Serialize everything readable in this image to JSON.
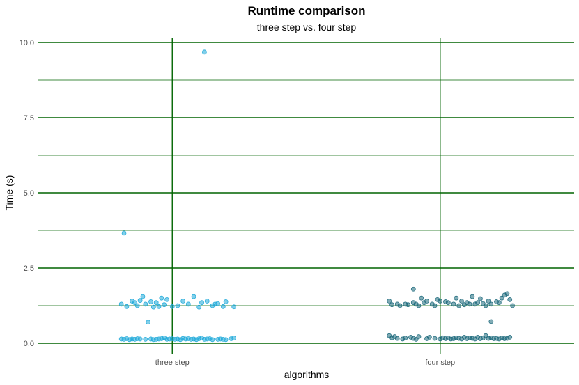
{
  "chart_data": {
    "type": "scatter",
    "title": "Runtime comparison",
    "subtitle": "three step vs. four step",
    "xlabel": "algorithms",
    "ylabel": "Time (s)",
    "categories": [
      "three step",
      "four step"
    ],
    "ylim": [
      -0.3,
      10.2
    ],
    "yticks": [
      {
        "value": 0,
        "label": "0.0"
      },
      {
        "value": 2.5,
        "label": "2.5"
      },
      {
        "value": 5,
        "label": "5.0"
      },
      {
        "value": 7.5,
        "label": "7.5"
      },
      {
        "value": 10,
        "label": "10.0"
      }
    ],
    "grid": true,
    "grid_color": "#006400",
    "legend": "none",
    "series": [
      {
        "category": "three step",
        "color": "#1aa7d8",
        "points": [
          [
            -0.18,
            3.66
          ],
          [
            0.12,
            9.68
          ],
          [
            -0.09,
            0.7
          ],
          [
            -0.19,
            1.3
          ],
          [
            -0.17,
            1.22
          ],
          [
            -0.15,
            1.4
          ],
          [
            -0.14,
            1.35
          ],
          [
            -0.13,
            1.25
          ],
          [
            -0.12,
            1.42
          ],
          [
            -0.11,
            1.55
          ],
          [
            -0.1,
            1.3
          ],
          [
            -0.08,
            1.38
          ],
          [
            -0.07,
            1.2
          ],
          [
            -0.06,
            1.35
          ],
          [
            -0.05,
            1.22
          ],
          [
            -0.04,
            1.5
          ],
          [
            -0.03,
            1.28
          ],
          [
            -0.02,
            1.45
          ],
          [
            0.0,
            1.22
          ],
          [
            0.02,
            1.25
          ],
          [
            0.04,
            1.4
          ],
          [
            0.06,
            1.3
          ],
          [
            0.08,
            1.55
          ],
          [
            0.1,
            1.2
          ],
          [
            0.11,
            1.35
          ],
          [
            0.13,
            1.4
          ],
          [
            0.15,
            1.25
          ],
          [
            0.16,
            1.3
          ],
          [
            0.17,
            1.32
          ],
          [
            0.19,
            1.22
          ],
          [
            0.2,
            1.38
          ],
          [
            0.23,
            1.21
          ],
          [
            -0.19,
            0.14
          ],
          [
            -0.18,
            0.13
          ],
          [
            -0.17,
            0.15
          ],
          [
            -0.16,
            0.12
          ],
          [
            -0.15,
            0.14
          ],
          [
            -0.14,
            0.13
          ],
          [
            -0.13,
            0.15
          ],
          [
            -0.12,
            0.14
          ],
          [
            -0.1,
            0.13
          ],
          [
            -0.08,
            0.14
          ],
          [
            -0.07,
            0.12
          ],
          [
            -0.06,
            0.13
          ],
          [
            -0.05,
            0.14
          ],
          [
            -0.04,
            0.15
          ],
          [
            -0.03,
            0.18
          ],
          [
            -0.02,
            0.13
          ],
          [
            -0.01,
            0.14
          ],
          [
            0.0,
            0.15
          ],
          [
            0.01,
            0.13
          ],
          [
            0.02,
            0.14
          ],
          [
            0.03,
            0.12
          ],
          [
            0.04,
            0.16
          ],
          [
            0.05,
            0.14
          ],
          [
            0.06,
            0.15
          ],
          [
            0.07,
            0.13
          ],
          [
            0.08,
            0.14
          ],
          [
            0.09,
            0.12
          ],
          [
            0.1,
            0.15
          ],
          [
            0.11,
            0.17
          ],
          [
            0.12,
            0.13
          ],
          [
            0.13,
            0.14
          ],
          [
            0.14,
            0.15
          ],
          [
            0.15,
            0.12
          ],
          [
            0.17,
            0.13
          ],
          [
            0.18,
            0.14
          ],
          [
            0.19,
            0.13
          ],
          [
            0.2,
            0.12
          ],
          [
            0.22,
            0.15
          ],
          [
            0.23,
            0.17
          ]
        ]
      },
      {
        "category": "four step",
        "color": "#19677a",
        "points": [
          [
            0.19,
            0.72
          ],
          [
            -0.19,
            1.4
          ],
          [
            -0.18,
            1.28
          ],
          [
            -0.16,
            1.3
          ],
          [
            -0.15,
            1.25
          ],
          [
            -0.13,
            1.3
          ],
          [
            -0.12,
            1.28
          ],
          [
            -0.1,
            1.35
          ],
          [
            -0.09,
            1.3
          ],
          [
            -0.08,
            1.25
          ],
          [
            -0.07,
            1.5
          ],
          [
            -0.06,
            1.35
          ],
          [
            -0.05,
            1.4
          ],
          [
            -0.03,
            1.3
          ],
          [
            -0.02,
            1.25
          ],
          [
            -0.01,
            1.45
          ],
          [
            0.0,
            1.4
          ],
          [
            0.02,
            1.38
          ],
          [
            0.03,
            1.35
          ],
          [
            0.05,
            1.3
          ],
          [
            0.06,
            1.5
          ],
          [
            0.07,
            1.25
          ],
          [
            0.08,
            1.4
          ],
          [
            0.09,
            1.28
          ],
          [
            0.1,
            1.35
          ],
          [
            0.11,
            1.3
          ],
          [
            0.12,
            1.55
          ],
          [
            0.13,
            1.3
          ],
          [
            0.14,
            1.35
          ],
          [
            0.15,
            1.48
          ],
          [
            0.16,
            1.32
          ],
          [
            0.17,
            1.25
          ],
          [
            0.18,
            1.4
          ],
          [
            0.19,
            1.3
          ],
          [
            0.21,
            1.38
          ],
          [
            0.22,
            1.35
          ],
          [
            0.23,
            1.5
          ],
          [
            0.24,
            1.6
          ],
          [
            0.25,
            1.65
          ],
          [
            0.26,
            1.45
          ],
          [
            0.27,
            1.25
          ],
          [
            -0.1,
            1.8
          ],
          [
            -0.19,
            0.25
          ],
          [
            -0.18,
            0.18
          ],
          [
            -0.17,
            0.22
          ],
          [
            -0.16,
            0.16
          ],
          [
            -0.14,
            0.14
          ],
          [
            -0.13,
            0.17
          ],
          [
            -0.11,
            0.2
          ],
          [
            -0.1,
            0.16
          ],
          [
            -0.09,
            0.13
          ],
          [
            -0.08,
            0.22
          ],
          [
            -0.05,
            0.15
          ],
          [
            -0.04,
            0.2
          ],
          [
            -0.02,
            0.16
          ],
          [
            0.0,
            0.14
          ],
          [
            0.01,
            0.18
          ],
          [
            0.02,
            0.15
          ],
          [
            0.03,
            0.17
          ],
          [
            0.04,
            0.14
          ],
          [
            0.05,
            0.15
          ],
          [
            0.06,
            0.18
          ],
          [
            0.07,
            0.16
          ],
          [
            0.08,
            0.14
          ],
          [
            0.09,
            0.2
          ],
          [
            0.1,
            0.15
          ],
          [
            0.11,
            0.17
          ],
          [
            0.12,
            0.16
          ],
          [
            0.13,
            0.14
          ],
          [
            0.14,
            0.2
          ],
          [
            0.15,
            0.15
          ],
          [
            0.16,
            0.17
          ],
          [
            0.17,
            0.25
          ],
          [
            0.18,
            0.16
          ],
          [
            0.19,
            0.18
          ],
          [
            0.2,
            0.15
          ],
          [
            0.21,
            0.16
          ],
          [
            0.22,
            0.14
          ],
          [
            0.23,
            0.17
          ],
          [
            0.24,
            0.15
          ],
          [
            0.25,
            0.16
          ],
          [
            0.26,
            0.2
          ]
        ]
      }
    ]
  }
}
